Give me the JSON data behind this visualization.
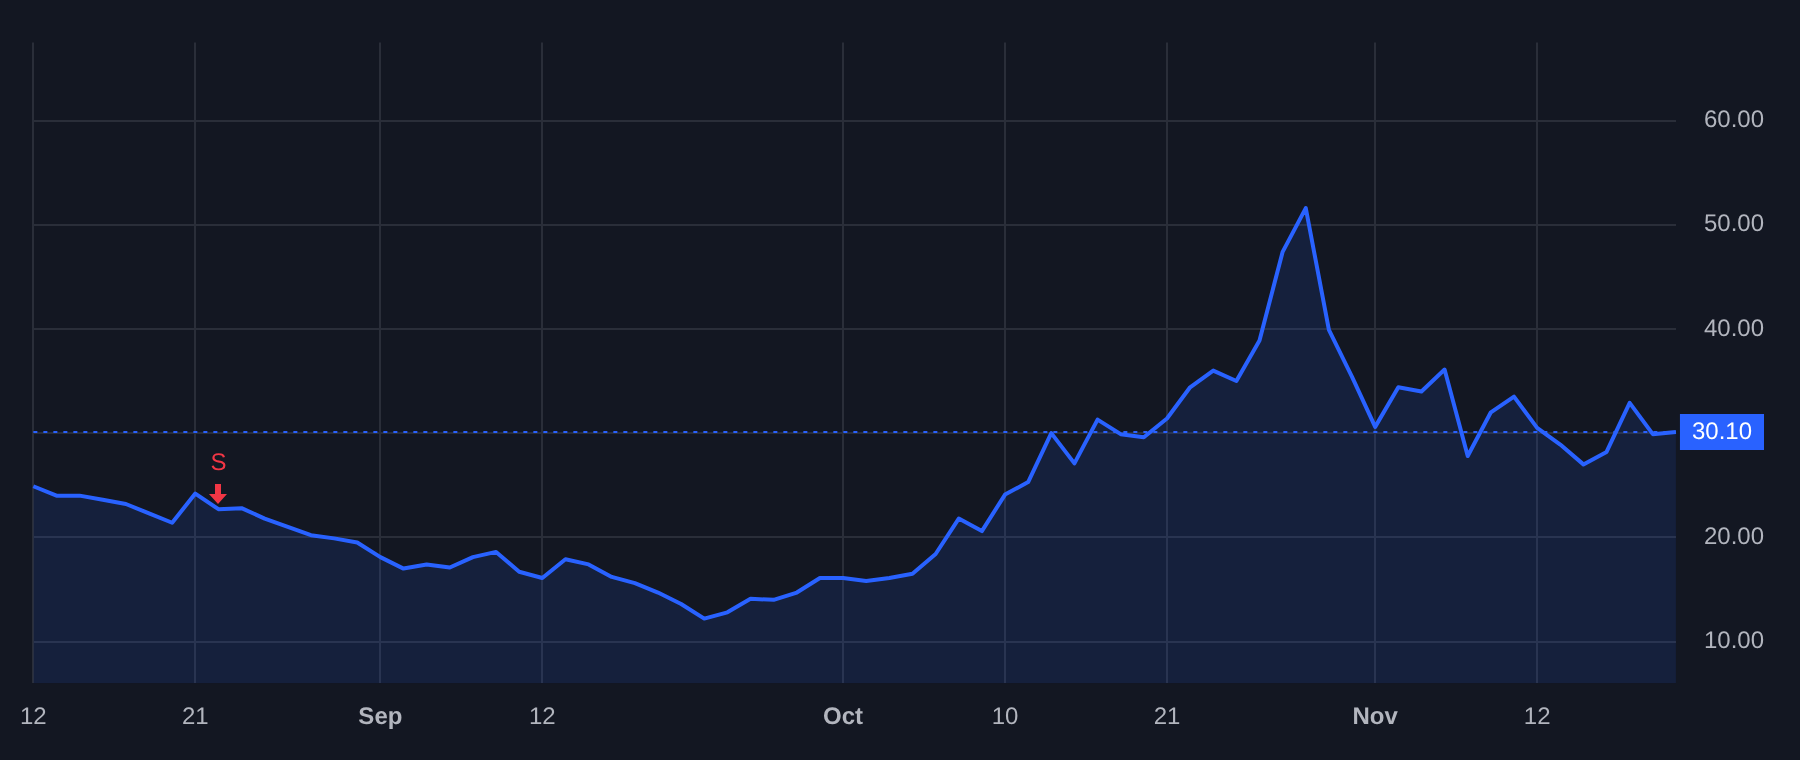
{
  "chart_data": {
    "type": "area",
    "categories": [
      "12",
      null,
      null,
      null,
      null,
      null,
      null,
      "21",
      null,
      null,
      null,
      null,
      null,
      null,
      null,
      "Sep",
      null,
      null,
      null,
      null,
      null,
      null,
      "12",
      null,
      null,
      null,
      null,
      null,
      null,
      null,
      null,
      null,
      null,
      null,
      null,
      "Oct",
      null,
      null,
      null,
      null,
      null,
      null,
      "10",
      null,
      null,
      null,
      null,
      null,
      null,
      "21",
      null,
      null,
      null,
      null,
      null,
      null,
      null,
      null,
      "Nov",
      null,
      null,
      null,
      null,
      null,
      null,
      "12",
      null,
      null,
      null,
      null,
      null,
      null
    ],
    "series": [
      {
        "color": "#2962ff",
        "values": [
          24.9,
          24.0,
          24.0,
          23.6,
          23.2,
          22.3,
          21.4,
          24.2,
          22.7,
          22.8,
          21.8,
          21.0,
          20.2,
          19.9,
          19.5,
          18.1,
          17.0,
          17.4,
          17.1,
          18.1,
          18.6,
          16.7,
          16.1,
          17.9,
          17.4,
          16.2,
          15.6,
          14.7,
          13.6,
          12.2,
          12.8,
          14.1,
          14.0,
          14.7,
          16.1,
          16.1,
          15.8,
          16.1,
          16.5,
          18.4,
          21.8,
          20.6,
          24.1,
          25.3,
          30.0,
          27.1,
          31.3,
          29.9,
          29.6,
          31.4,
          34.4,
          36.0,
          35.0,
          38.9,
          47.4,
          51.6,
          39.9,
          35.4,
          30.6,
          34.4,
          34.0,
          36.1,
          27.8,
          32.0,
          33.5,
          30.5,
          28.9,
          27.0,
          28.2,
          32.9,
          29.9,
          30.1
        ]
      }
    ],
    "ylim": [
      6,
      67.5
    ],
    "yticks": [
      {
        "value": 10,
        "label": "10.00"
      },
      {
        "value": 20,
        "label": "20.00"
      },
      {
        "value": 30,
        "label": null
      },
      {
        "value": 40,
        "label": "40.00"
      },
      {
        "value": 50,
        "label": "50.00"
      },
      {
        "value": 60,
        "label": "60.00"
      }
    ],
    "ref_lines": [
      {
        "axis": "y",
        "value": 30.1,
        "label": "30.10",
        "color": "#2962ff",
        "line_style": "dotted"
      }
    ],
    "annotations": [
      {
        "text": "S",
        "y": 22.7
      }
    ],
    "grid": true,
    "legend": false,
    "marker": "none",
    "line_style": "solid"
  }
}
